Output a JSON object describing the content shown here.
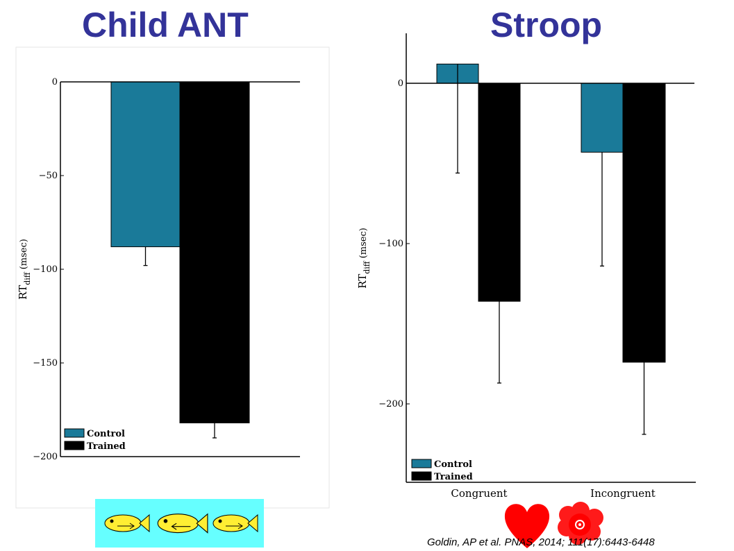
{
  "slide": {
    "left_title": "Child ANT",
    "right_title": "Stroop",
    "citation": "Goldin, AP et al. PNAS, 2014; 111(17):6443-6448"
  },
  "colors": {
    "control": "#1a7a99",
    "trained": "#000000",
    "title": "#333399"
  },
  "icons": [
    "fish-icon",
    "fish-icon",
    "fish-icon",
    "heart-icon",
    "flower-icon"
  ],
  "chart_data": [
    {
      "type": "bar",
      "title": "",
      "xlabel": "",
      "ylabel_main": "RT",
      "ylabel_sub": "diff",
      "ylabel_unit": " (msec)",
      "ylim": [
        -200,
        0
      ],
      "yticks": [
        0,
        -50,
        -100,
        -150,
        -200
      ],
      "ytick_labels": [
        "0",
        "−50",
        "−100",
        "−150",
        "−200"
      ],
      "categories": [
        ""
      ],
      "series": [
        {
          "name": "Control",
          "values": [
            -88
          ],
          "error_low": [
            -98
          ],
          "error_high": [
            -88
          ]
        },
        {
          "name": "Trained",
          "values": [
            -182
          ],
          "error_low": [
            -190
          ],
          "error_high": [
            -182
          ]
        }
      ],
      "legend": {
        "position": "bottom-left",
        "entries": [
          "Control",
          "Trained"
        ]
      },
      "grid": false
    },
    {
      "type": "bar",
      "title": "",
      "xlabel": "",
      "ylabel_main": "RT",
      "ylabel_sub": "diff",
      "ylabel_unit": " (msec)",
      "ylim": [
        -250,
        30
      ],
      "yticks": [
        0,
        -100,
        -200
      ],
      "ytick_labels": [
        "0",
        "−100",
        "−200"
      ],
      "categories": [
        "Congruent",
        "Incongruent"
      ],
      "series": [
        {
          "name": "Control",
          "values": [
            12,
            -43
          ],
          "error_low": [
            -56,
            -114
          ],
          "error_high": [
            12,
            -43
          ]
        },
        {
          "name": "Trained",
          "values": [
            -136,
            -174
          ],
          "error_low": [
            -187,
            -219
          ],
          "error_high": [
            -136,
            -174
          ]
        }
      ],
      "legend": {
        "position": "bottom-left",
        "entries": [
          "Control",
          "Trained"
        ]
      },
      "grid": false
    }
  ]
}
